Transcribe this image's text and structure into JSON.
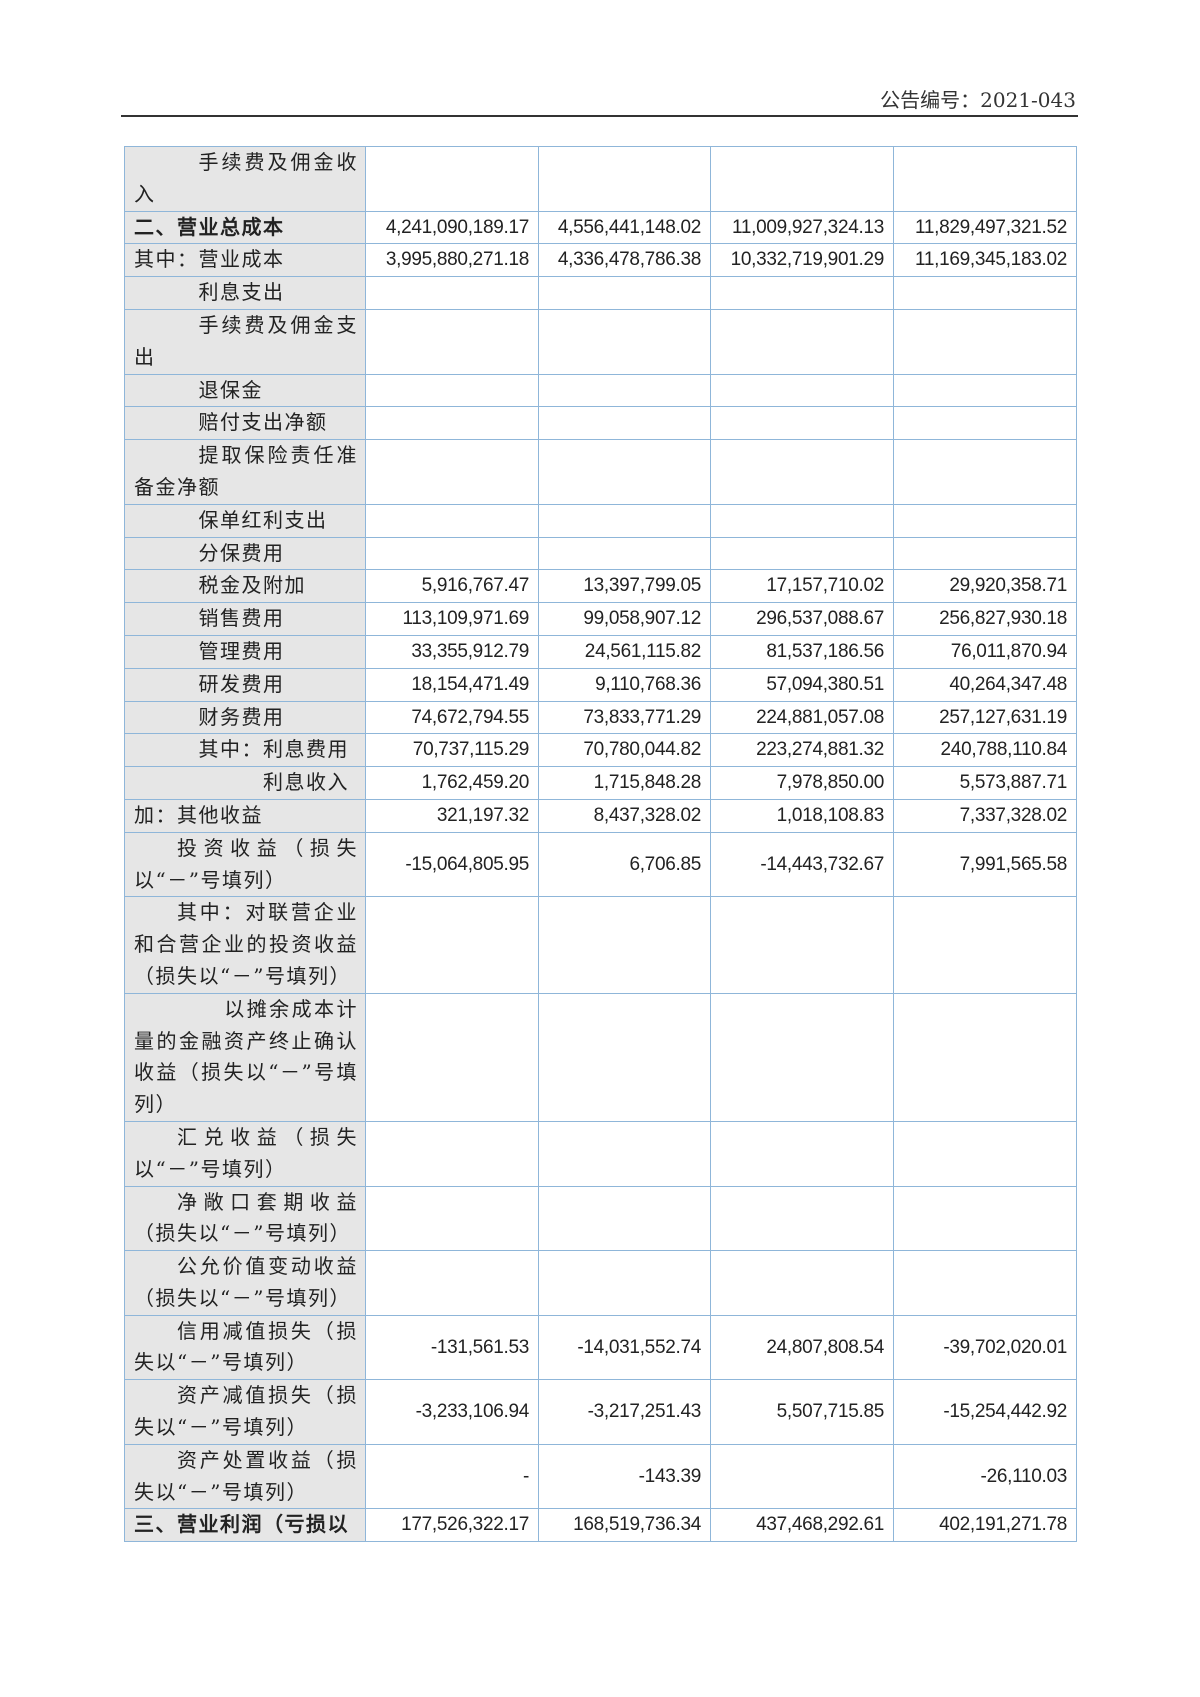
{
  "header": {
    "doc_number": "公告编号：2021-043"
  },
  "rows": [
    {
      "label": "手续费及佣金收入",
      "values": [
        "",
        "",
        "",
        ""
      ]
    },
    {
      "label": "二、营业总成本",
      "bold": true,
      "values": [
        "4,241,090,189.17",
        "4,556,441,148.02",
        "11,009,927,324.13",
        "11,829,497,321.52"
      ]
    },
    {
      "label": "其中：营业成本",
      "values": [
        "3,995,880,271.18",
        "4,336,478,786.38",
        "10,332,719,901.29",
        "11,169,345,183.02"
      ]
    },
    {
      "label": "利息支出",
      "values": [
        "",
        "",
        "",
        ""
      ]
    },
    {
      "label": "手续费及佣金支出",
      "values": [
        "",
        "",
        "",
        ""
      ]
    },
    {
      "label": "退保金",
      "values": [
        "",
        "",
        "",
        ""
      ]
    },
    {
      "label": "赔付支出净额",
      "values": [
        "",
        "",
        "",
        ""
      ]
    },
    {
      "label": "提取保险责任准备金净额",
      "values": [
        "",
        "",
        "",
        ""
      ]
    },
    {
      "label": "保单红利支出",
      "values": [
        "",
        "",
        "",
        ""
      ]
    },
    {
      "label": "分保费用",
      "values": [
        "",
        "",
        "",
        ""
      ]
    },
    {
      "label": "税金及附加",
      "values": [
        "5,916,767.47",
        "13,397,799.05",
        "17,157,710.02",
        "29,920,358.71"
      ]
    },
    {
      "label": "销售费用",
      "values": [
        "113,109,971.69",
        "99,058,907.12",
        "296,537,088.67",
        "256,827,930.18"
      ]
    },
    {
      "label": "管理费用",
      "values": [
        "33,355,912.79",
        "24,561,115.82",
        "81,537,186.56",
        "76,011,870.94"
      ]
    },
    {
      "label": "研发费用",
      "values": [
        "18,154,471.49",
        "9,110,768.36",
        "57,094,380.51",
        "40,264,347.48"
      ]
    },
    {
      "label": "财务费用",
      "values": [
        "74,672,794.55",
        "73,833,771.29",
        "224,881,057.08",
        "257,127,631.19"
      ]
    },
    {
      "label": "其中：利息费用",
      "values": [
        "70,737,115.29",
        "70,780,044.82",
        "223,274,881.32",
        "240,788,110.84"
      ]
    },
    {
      "label": "利息收入",
      "values": [
        "1,762,459.20",
        "1,715,848.28",
        "7,978,850.00",
        "5,573,887.71"
      ]
    },
    {
      "label": "加：其他收益",
      "values": [
        "321,197.32",
        "8,437,328.02",
        "1,018,108.83",
        "7,337,328.02"
      ]
    },
    {
      "label": "投资收益（损失以“－”号填列）",
      "values": [
        "-15,064,805.95",
        "6,706.85",
        "-14,443,732.67",
        "7,991,565.58"
      ]
    },
    {
      "label": "其中：对联营企业和合营企业的投资收益（损失以“－”号填列）",
      "values": [
        "",
        "",
        "",
        ""
      ]
    },
    {
      "label": "以摊余成本计量的金融资产终止确认收益（损失以“－”号填列）",
      "values": [
        "",
        "",
        "",
        ""
      ]
    },
    {
      "label": "汇兑收益（损失以“－”号填列）",
      "values": [
        "",
        "",
        "",
        ""
      ]
    },
    {
      "label": "净敞口套期收益（损失以“－”号填列）",
      "values": [
        "",
        "",
        "",
        ""
      ]
    },
    {
      "label": "公允价值变动收益（损失以“－”号填列）",
      "values": [
        "",
        "",
        "",
        ""
      ]
    },
    {
      "label": "信用减值损失（损失以“－”号填列）",
      "values": [
        "-131,561.53",
        "-14,031,552.74",
        "24,807,808.54",
        "-39,702,020.01"
      ]
    },
    {
      "label": "资产减值损失（损失以“－”号填列）",
      "values": [
        "-3,233,106.94",
        "-3,217,251.43",
        "5,507,715.85",
        "-15,254,442.92"
      ]
    },
    {
      "label": "资产处置收益（损失以“－”号填列）",
      "values": [
        "-",
        "-143.39",
        "",
        "-26,110.03"
      ]
    },
    {
      "label": "三、营业利润（亏损以",
      "bold": true,
      "values": [
        "177,526,322.17",
        "168,519,736.34",
        "437,468,292.61",
        "402,191,271.78"
      ]
    }
  ]
}
